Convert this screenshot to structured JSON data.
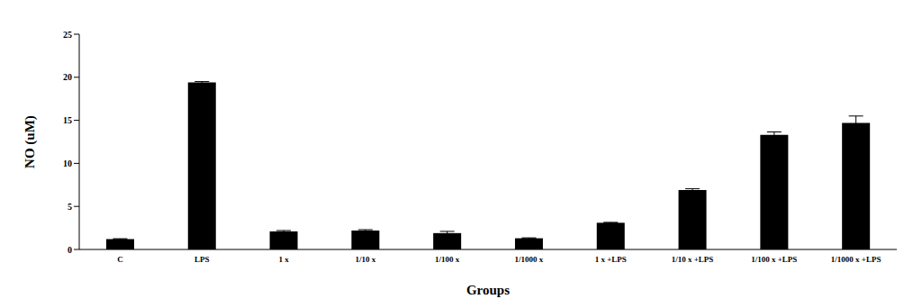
{
  "chart_data": {
    "type": "bar",
    "x_label": "Groups",
    "y_label": "NO (uM)",
    "categories": [
      "C",
      "LPS",
      "1 x",
      "1/10 x",
      "1/100 x",
      "1/1000 x",
      "1 x +LPS",
      "1/10 x +LPS",
      "1/100 x +LPS",
      "1/1000 x +LPS"
    ],
    "values": [
      1.2,
      19.4,
      2.1,
      2.2,
      1.9,
      1.3,
      3.1,
      6.9,
      13.3,
      14.7
    ],
    "error": [
      0.05,
      0.1,
      0.1,
      0.1,
      0.2,
      0.05,
      0.05,
      0.15,
      0.35,
      0.8
    ],
    "color": "#000000",
    "ylim": [
      0,
      25
    ],
    "yticks": [
      0,
      5,
      10,
      15,
      20,
      25
    ],
    "grid": false
  }
}
